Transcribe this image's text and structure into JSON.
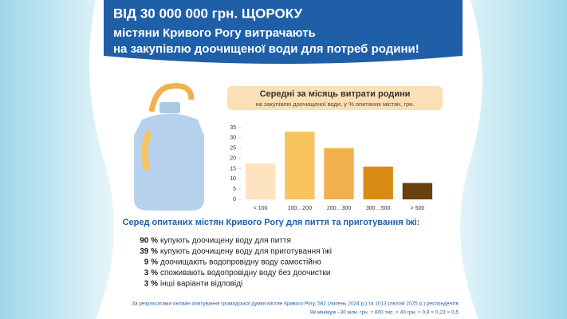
{
  "header": {
    "lines": [
      "ВІД 30 000 000 грн. ЩОРОКУ",
      "містяни Кривого Рогу витрачають",
      "на закупівлю доочищеної води для потреб родини!"
    ]
  },
  "chart_data": {
    "type": "bar",
    "title": "Середні за місяць витрати родини",
    "subtitle": "на закупівлю доочищеної води, у % опитаних містян, грн.",
    "categories": [
      "< 100",
      "100…200",
      "200…300",
      "300…500",
      "> 500"
    ],
    "values": [
      17.5,
      33,
      25,
      16,
      8
    ],
    "colors": [
      "#fde3c0",
      "#f7c45d",
      "#f1b04c",
      "#d88c16",
      "#6b3f0e"
    ],
    "ylim": [
      0,
      35
    ],
    "yticks": [
      0,
      5,
      10,
      15,
      20,
      25,
      30,
      35
    ],
    "grid": false
  },
  "survey": {
    "heading": "Серед опитаних містян Кривого Рогу для пиття та приготування їжі:",
    "items": [
      {
        "share": "90 %",
        "text": "купують доочищену воду для пиття"
      },
      {
        "share": "39 %",
        "text": "купують доочищену воду для приготування їжі"
      },
      {
        "share": "9 %",
        "text": "доочищають водопровідну воду самостійно"
      },
      {
        "share": "3 %",
        "text": "споживають водопровідну воду без доочистки"
      },
      {
        "share": "3 %",
        "text": "інші варіанти відповіді"
      }
    ]
  },
  "footnote": {
    "lines": [
      "За результатами онлайн опитування громадської думки містян Кривого Рогу, 582 (липень 2024 р.) та 1013 (лютий 2025 р.) респондентів",
      "Як мінімум ~30 млн. грн. = 600 тис. × 40 грн. × 0,9 × 0,23 × 0,5"
    ]
  }
}
